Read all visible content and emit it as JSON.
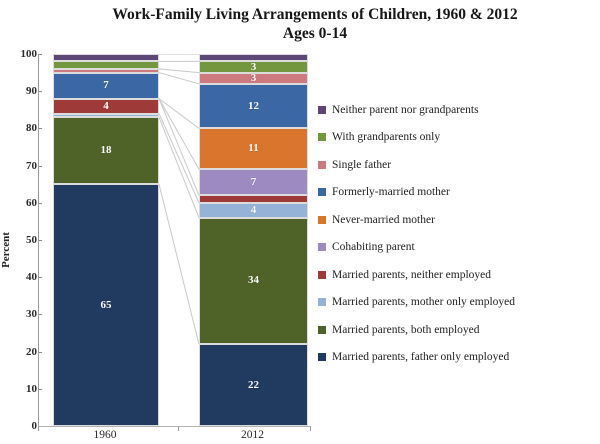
{
  "title": {
    "line1": "Work-Family Living Arrangements of Children, 1960 & 2012",
    "line2": "Ages 0-14"
  },
  "y_axis": {
    "label": "Percent",
    "ticks": [
      100,
      90,
      80,
      70,
      60,
      50,
      40,
      30,
      20,
      10,
      0
    ]
  },
  "x_axis": {
    "categories": [
      "1960",
      "2012"
    ]
  },
  "chart_data": {
    "type": "bar",
    "subtype": "stacked-column",
    "title": "Work-Family Living Arrangements of Children, 1960 & 2012",
    "subtitle": "Ages 0-14",
    "xlabel": "",
    "ylabel": "Percent",
    "ylim": [
      0,
      100
    ],
    "grid": false,
    "legend_position": "right",
    "categories": [
      "1960",
      "2012"
    ],
    "series_top_to_bottom": [
      {
        "name": "Neither parent nor grandparents",
        "color": "#5c4776",
        "values": [
          2,
          2
        ]
      },
      {
        "name": "With grandparents only",
        "color": "#72973e",
        "values": [
          2,
          3
        ]
      },
      {
        "name": "Single father",
        "color": "#cc7a7e",
        "values": [
          1,
          3
        ]
      },
      {
        "name": "Formerly-married mother",
        "color": "#3b67a5",
        "values": [
          7,
          12
        ]
      },
      {
        "name": "Never-married mother",
        "color": "#d9752c",
        "values": [
          0,
          11
        ]
      },
      {
        "name": "Cohabiting parent",
        "color": "#9c8ac0",
        "values": [
          0,
          7
        ]
      },
      {
        "name": "Married parents, neither employed",
        "color": "#9e3b38",
        "values": [
          4,
          2
        ]
      },
      {
        "name": "Married parents, mother only employed",
        "color": "#95b3d7",
        "values": [
          1,
          4
        ]
      },
      {
        "name": "Married parents, both employed",
        "color": "#4f6228",
        "values": [
          18,
          34
        ]
      },
      {
        "name": "Married parents, father only employed",
        "color": "#203a60",
        "values": [
          65,
          22
        ]
      }
    ],
    "label_min_value": 3,
    "label_color": "#ffffff",
    "connector_color": "#c9c9c9"
  }
}
